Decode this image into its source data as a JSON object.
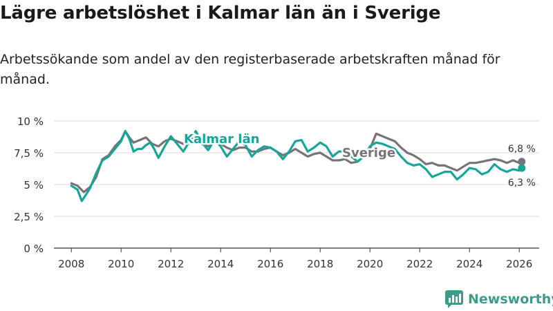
{
  "title": "Lägre arbetslöshet i Kalmar län än i Sverige",
  "subtitle": "Arbetssökande som andel av den registerbaserade arbetskraften månad för månad.",
  "brand": {
    "name": "Newsworthy",
    "icon": "bar-chart-logo-icon"
  },
  "colors": {
    "kalmar": "#16a597",
    "sverige": "#777378",
    "grid": "#d9d9d9",
    "text": "#333333",
    "brand": "#3f9a8a"
  },
  "chart_data": {
    "type": "line",
    "xlabel": "",
    "ylabel": "",
    "xlim": [
      2007.3,
      2026.8
    ],
    "ylim": [
      0,
      10
    ],
    "x_ticks": [
      2008,
      2010,
      2012,
      2014,
      2016,
      2018,
      2020,
      2022,
      2024,
      2026
    ],
    "x_tick_labels": [
      "2008",
      "2010",
      "2012",
      "2014",
      "2016",
      "2018",
      "2020",
      "2022",
      "2024",
      "2026"
    ],
    "y_ticks": [
      0,
      2.5,
      5,
      7.5,
      10
    ],
    "y_tick_labels": [
      "0 %",
      "2,5 %",
      "5 %",
      "7,5 %",
      "10 %"
    ],
    "grid": true,
    "series": [
      {
        "name": "Sverige",
        "label": "Sverige",
        "end_label": "6,8 %",
        "x": [
          2008.0,
          2008.25,
          2008.5,
          2008.75,
          2009.0,
          2009.25,
          2009.5,
          2009.75,
          2010.0,
          2010.17,
          2010.33,
          2010.5,
          2010.75,
          2011.0,
          2011.25,
          2011.5,
          2011.75,
          2012.0,
          2012.25,
          2012.5,
          2012.75,
          2013.0,
          2013.25,
          2013.5,
          2013.75,
          2014.0,
          2014.25,
          2014.5,
          2014.75,
          2015.0,
          2015.25,
          2015.5,
          2015.75,
          2016.0,
          2016.25,
          2016.5,
          2016.75,
          2017.0,
          2017.25,
          2017.5,
          2017.75,
          2018.0,
          2018.25,
          2018.5,
          2018.75,
          2019.0,
          2019.25,
          2019.5,
          2019.75,
          2020.0,
          2020.25,
          2020.5,
          2020.75,
          2021.0,
          2021.25,
          2021.5,
          2021.75,
          2022.0,
          2022.25,
          2022.5,
          2022.75,
          2023.0,
          2023.25,
          2023.5,
          2023.75,
          2024.0,
          2024.25,
          2024.5,
          2024.75,
          2025.0,
          2025.25,
          2025.5,
          2025.75,
          2026.0,
          2026.1
        ],
        "y": [
          5.1,
          4.9,
          4.4,
          4.8,
          5.6,
          7.0,
          7.3,
          8.0,
          8.5,
          9.2,
          8.7,
          8.3,
          8.5,
          8.7,
          8.2,
          8.0,
          8.4,
          8.6,
          8.4,
          8.2,
          8.5,
          8.6,
          8.2,
          8.0,
          8.3,
          8.2,
          7.9,
          7.7,
          7.9,
          7.9,
          7.6,
          7.6,
          7.8,
          7.9,
          7.6,
          7.3,
          7.5,
          7.8,
          7.5,
          7.2,
          7.4,
          7.5,
          7.2,
          6.9,
          6.9,
          7.0,
          6.7,
          6.8,
          7.2,
          7.8,
          9.0,
          8.8,
          8.6,
          8.4,
          7.9,
          7.5,
          7.3,
          7.0,
          6.6,
          6.7,
          6.5,
          6.5,
          6.3,
          6.1,
          6.4,
          6.7,
          6.7,
          6.8,
          6.9,
          7.0,
          6.9,
          6.7,
          6.9,
          6.7,
          6.8
        ]
      },
      {
        "name": "Kalmar län",
        "label": "Kalmar län",
        "end_label": "6,3 %",
        "x": [
          2008.0,
          2008.25,
          2008.42,
          2008.75,
          2009.0,
          2009.25,
          2009.5,
          2009.75,
          2010.0,
          2010.17,
          2010.33,
          2010.5,
          2010.67,
          2010.83,
          2011.0,
          2011.17,
          2011.33,
          2011.5,
          2011.75,
          2012.0,
          2012.25,
          2012.5,
          2012.75,
          2013.0,
          2013.25,
          2013.5,
          2013.75,
          2014.0,
          2014.25,
          2014.5,
          2014.75,
          2015.0,
          2015.25,
          2015.5,
          2015.75,
          2016.0,
          2016.25,
          2016.5,
          2016.75,
          2017.0,
          2017.25,
          2017.5,
          2017.75,
          2018.0,
          2018.25,
          2018.5,
          2018.75,
          2019.0,
          2019.25,
          2019.5,
          2019.75,
          2020.0,
          2020.25,
          2020.5,
          2020.75,
          2021.0,
          2021.25,
          2021.5,
          2021.75,
          2022.0,
          2022.25,
          2022.5,
          2022.75,
          2023.0,
          2023.25,
          2023.5,
          2023.75,
          2024.0,
          2024.25,
          2024.5,
          2024.75,
          2025.0,
          2025.25,
          2025.5,
          2025.75,
          2026.0,
          2026.1
        ],
        "y": [
          4.9,
          4.6,
          3.7,
          4.7,
          5.9,
          6.9,
          7.2,
          7.8,
          8.4,
          9.2,
          8.6,
          7.6,
          7.8,
          7.8,
          8.1,
          8.3,
          7.8,
          7.1,
          8.0,
          8.8,
          8.2,
          7.6,
          8.4,
          9.2,
          8.3,
          7.7,
          8.5,
          8.0,
          7.2,
          7.8,
          8.4,
          8.1,
          7.2,
          7.7,
          8.0,
          7.9,
          7.6,
          7.0,
          7.6,
          8.4,
          8.5,
          7.6,
          7.9,
          8.3,
          8.0,
          7.2,
          7.6,
          7.6,
          7.2,
          6.8,
          7.2,
          8.0,
          8.3,
          8.2,
          8.0,
          7.8,
          7.2,
          6.7,
          6.5,
          6.6,
          6.2,
          5.6,
          5.8,
          6.0,
          6.0,
          5.4,
          5.8,
          6.3,
          6.2,
          5.8,
          6.0,
          6.6,
          6.2,
          6.0,
          6.2,
          6.1,
          6.3
        ]
      }
    ]
  }
}
